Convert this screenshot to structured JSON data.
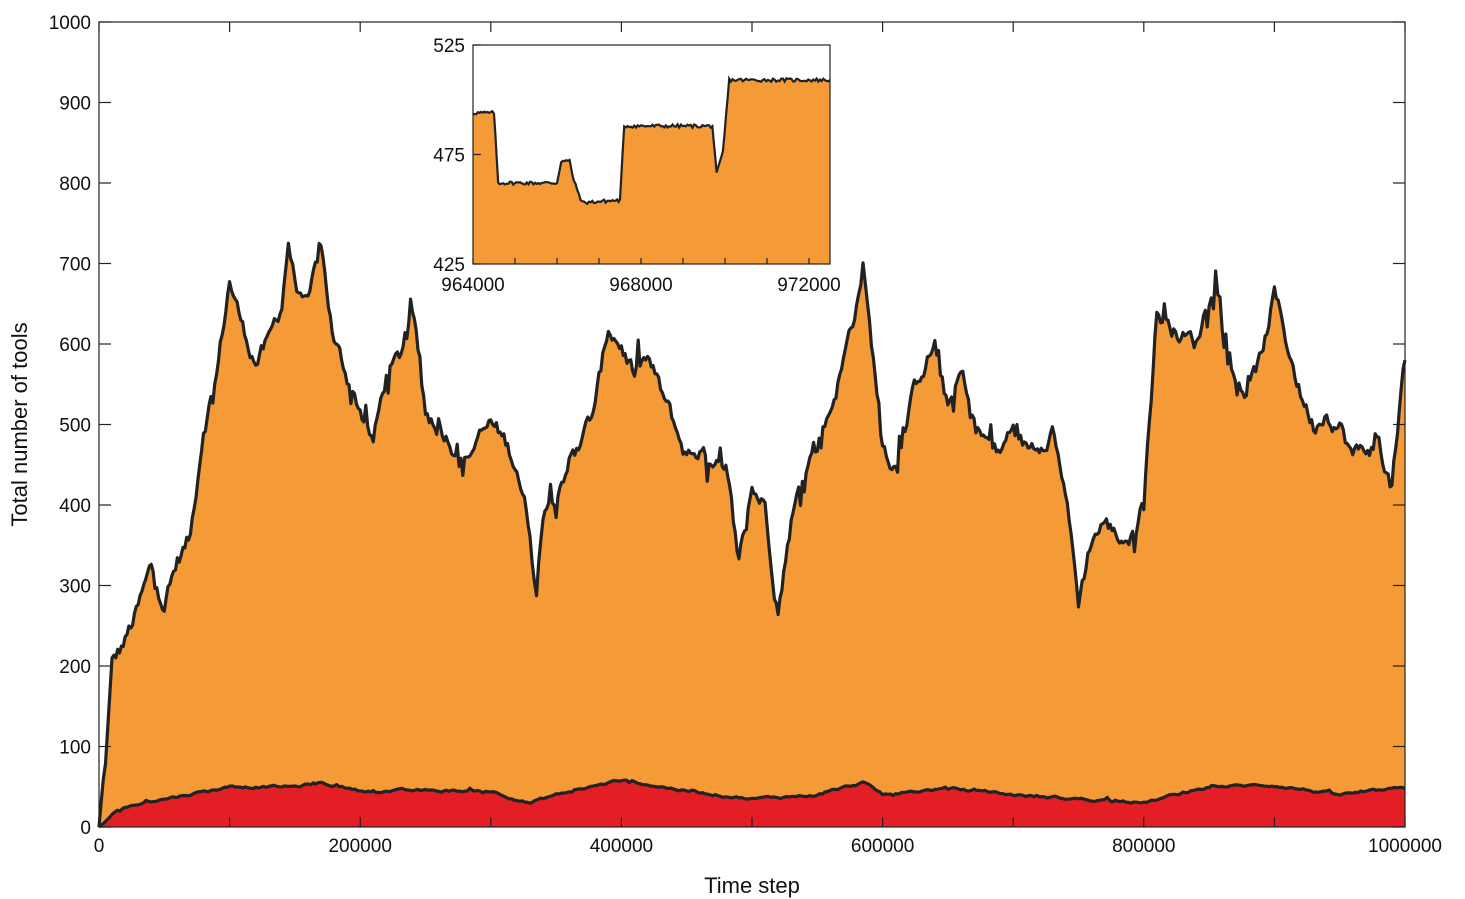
{
  "chart_data": [
    {
      "type": "area",
      "xlabel": "Time step",
      "ylabel": "Total number of tools",
      "xlim": [
        0,
        1000000
      ],
      "ylim": [
        0,
        1000
      ],
      "x_ticks": [
        "0",
        "200000",
        "400000",
        "600000",
        "800000",
        "1000000"
      ],
      "y_ticks": [
        "0",
        "100",
        "200",
        "300",
        "400",
        "500",
        "600",
        "700",
        "800",
        "900",
        "1000"
      ],
      "grid": false,
      "colors": {
        "total_fill": "#F49A36",
        "lower_fill": "#E31E24",
        "line": "#222222"
      },
      "series": [
        {
          "x": [
            0,
            5000,
            10000,
            20000,
            30000,
            40000,
            50000,
            60000,
            70000,
            80000,
            90000,
            100000,
            110000,
            120000,
            130000,
            140000,
            145000,
            150000,
            160000,
            170000,
            180000,
            190000,
            200000,
            210000,
            220000,
            230000,
            240000,
            250000,
            260000,
            270000,
            280000,
            290000,
            300000,
            310000,
            320000,
            330000,
            335000,
            340000,
            350000,
            360000,
            370000,
            380000,
            390000,
            400000,
            410000,
            420000,
            430000,
            440000,
            450000,
            460000,
            470000,
            480000,
            490000,
            500000,
            510000,
            520000,
            530000,
            540000,
            550000,
            560000,
            570000,
            580000,
            585000,
            590000,
            600000,
            610000,
            620000,
            630000,
            640000,
            650000,
            660000,
            670000,
            680000,
            690000,
            700000,
            710000,
            720000,
            730000,
            740000,
            750000,
            760000,
            770000,
            780000,
            790000,
            800000,
            810000,
            820000,
            830000,
            840000,
            850000,
            855000,
            860000,
            870000,
            880000,
            890000,
            900000,
            910000,
            920000,
            930000,
            940000,
            950000,
            960000,
            970000,
            980000,
            990000,
            1000000
          ],
          "values": [
            0,
            80,
            200,
            230,
            270,
            320,
            280,
            330,
            360,
            500,
            560,
            680,
            620,
            580,
            600,
            650,
            730,
            680,
            640,
            720,
            600,
            560,
            520,
            480,
            560,
            580,
            640,
            520,
            500,
            480,
            460,
            480,
            500,
            480,
            450,
            370,
            290,
            400,
            420,
            460,
            480,
            520,
            620,
            600,
            560,
            580,
            540,
            500,
            460,
            470,
            440,
            440,
            330,
            420,
            400,
            270,
            380,
            440,
            480,
            520,
            580,
            650,
            700,
            620,
            480,
            450,
            520,
            570,
            600,
            520,
            560,
            500,
            480,
            460,
            500,
            470,
            480,
            500,
            420,
            280,
            360,
            380,
            360,
            360,
            400,
            640,
            620,
            610,
            600,
            660,
            700,
            620,
            560,
            540,
            580,
            660,
            600,
            540,
            500,
            520,
            500,
            460,
            470,
            480,
            420,
            580
          ]
        },
        {
          "x": [
            0,
            10000,
            20000,
            50000,
            100000,
            150000,
            170000,
            200000,
            250000,
            300000,
            330000,
            350000,
            400000,
            450000,
            500000,
            550000,
            585000,
            600000,
            650000,
            700000,
            750000,
            800000,
            850000,
            900000,
            950000,
            1000000
          ],
          "values": [
            0,
            15,
            25,
            35,
            50,
            50,
            55,
            45,
            45,
            45,
            30,
            40,
            58,
            45,
            35,
            40,
            55,
            40,
            48,
            40,
            35,
            30,
            50,
            52,
            40,
            48
          ]
        }
      ]
    },
    {
      "type": "area",
      "xlim": [
        964000,
        972500
      ],
      "ylim": [
        425,
        525
      ],
      "x_ticks": [
        "964000",
        "968000",
        "972000"
      ],
      "y_ticks": [
        "425",
        "475",
        "525"
      ],
      "grid": false,
      "x": [
        964000,
        964500,
        964600,
        966000,
        966100,
        966300,
        966400,
        966600,
        967400,
        967500,
        967600,
        968000,
        969700,
        969800,
        969950,
        970100,
        972500
      ],
      "values": [
        494,
        494,
        462,
        462,
        472,
        472,
        463,
        453,
        454,
        454,
        488,
        488,
        488,
        466,
        476,
        509,
        509
      ]
    }
  ]
}
